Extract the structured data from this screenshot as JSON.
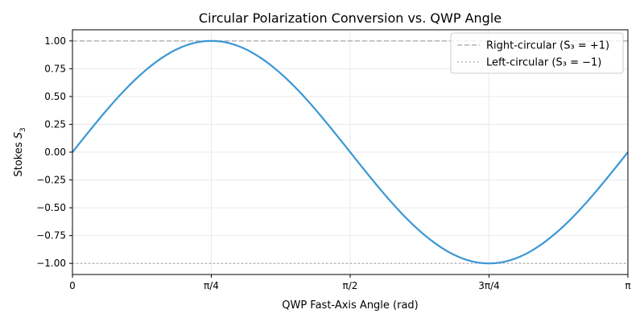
{
  "chart_data": {
    "type": "line",
    "title": "Circular Polarization Conversion vs. QWP Angle",
    "xlabel": "QWP Fast-Axis Angle (rad)",
    "ylabel_prefix": "Stokes ",
    "ylabel_symbol": "S",
    "ylabel_subscript": "3",
    "xlim": [
      0,
      3.14159265
    ],
    "ylim": [
      -1.1,
      1.1
    ],
    "grid": true,
    "legend_position": "top-right",
    "x_ticks": [
      {
        "value": 0,
        "label": "0"
      },
      {
        "value": 0.785398,
        "label": "π/4"
      },
      {
        "value": 1.570796,
        "label": "π/2"
      },
      {
        "value": 2.356194,
        "label": "3π/4"
      },
      {
        "value": 3.141593,
        "label": "π"
      }
    ],
    "y_ticks": [
      {
        "value": 1.0,
        "label": "1.00"
      },
      {
        "value": 0.75,
        "label": "0.75"
      },
      {
        "value": 0.5,
        "label": "0.50"
      },
      {
        "value": 0.25,
        "label": "0.25"
      },
      {
        "value": 0.0,
        "label": "0.00"
      },
      {
        "value": -0.25,
        "label": "−0.25"
      },
      {
        "value": -0.5,
        "label": "−0.50"
      },
      {
        "value": -0.75,
        "label": "−0.75"
      },
      {
        "value": -1.0,
        "label": "−1.00"
      }
    ],
    "series": [
      {
        "color": "#3a97d5",
        "style": "solid",
        "x": [
          0,
          0.098175,
          0.19635,
          0.294524,
          0.392699,
          0.490874,
          0.589049,
          0.687223,
          0.785398,
          0.883573,
          0.981748,
          1.079922,
          1.178097,
          1.276272,
          1.374447,
          1.472622,
          1.570796,
          1.668971,
          1.767146,
          1.865321,
          1.963495,
          2.06167,
          2.159845,
          2.25802,
          2.356194,
          2.454369,
          2.552544,
          2.650719,
          2.748894,
          2.847068,
          2.945243,
          3.043418,
          3.141593
        ],
        "y": [
          0,
          0.195,
          0.383,
          0.556,
          0.707,
          0.831,
          0.924,
          0.981,
          1.0,
          0.981,
          0.924,
          0.831,
          0.707,
          0.556,
          0.383,
          0.195,
          0,
          -0.195,
          -0.383,
          -0.556,
          -0.707,
          -0.831,
          -0.924,
          -0.981,
          -1.0,
          -0.981,
          -0.924,
          -0.831,
          -0.707,
          -0.556,
          -0.383,
          -0.195,
          0
        ]
      }
    ],
    "reference_lines": [
      {
        "name": "Right-circular (S₃ = +1)",
        "y": 1.0,
        "style": "dashed",
        "color": "#b3b3b3"
      },
      {
        "name": "Left-circular (S₃ = −1)",
        "y": -1.0,
        "style": "dotted",
        "color": "#b3b3b3"
      }
    ]
  }
}
